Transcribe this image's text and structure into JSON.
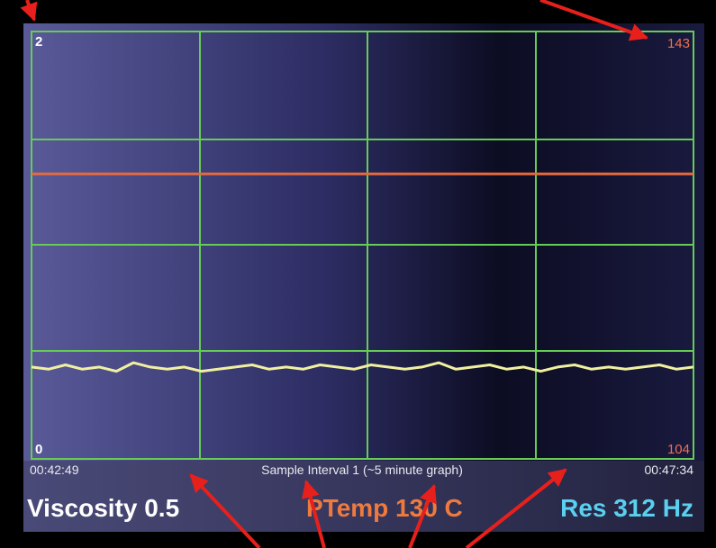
{
  "chart_data": {
    "type": "line",
    "ylim": [
      0,
      2
    ],
    "yticks": [
      0,
      2
    ],
    "y2lim": [
      104,
      143
    ],
    "y2ticks": [
      104,
      143
    ],
    "series": [
      {
        "color": "#e86a3c",
        "axis": "y2",
        "values": [
          130,
          130,
          130,
          130,
          130
        ]
      },
      {
        "color": "#f0f0a0",
        "values": [
          0.43,
          0.42,
          0.44,
          0.42,
          0.43,
          0.41,
          0.45,
          0.43,
          0.42,
          0.43,
          0.41,
          0.42,
          0.43,
          0.44,
          0.42,
          0.43,
          0.42,
          0.44,
          0.43,
          0.42,
          0.44,
          0.43,
          0.42,
          0.43,
          0.45,
          0.42,
          0.43,
          0.44,
          0.42,
          0.43,
          0.41,
          0.43,
          0.44,
          0.42,
          0.43,
          0.42,
          0.43,
          0.44,
          0.42,
          0.43
        ]
      }
    ]
  },
  "status": {
    "start_time": "00:42:49",
    "interval": "Sample Interval 1 (~5 minute graph)",
    "end_time": "00:47:34",
    "viscosity": "Viscosity 0.5",
    "ptemp": "PTemp 130 C",
    "res": "Res 312 Hz"
  }
}
